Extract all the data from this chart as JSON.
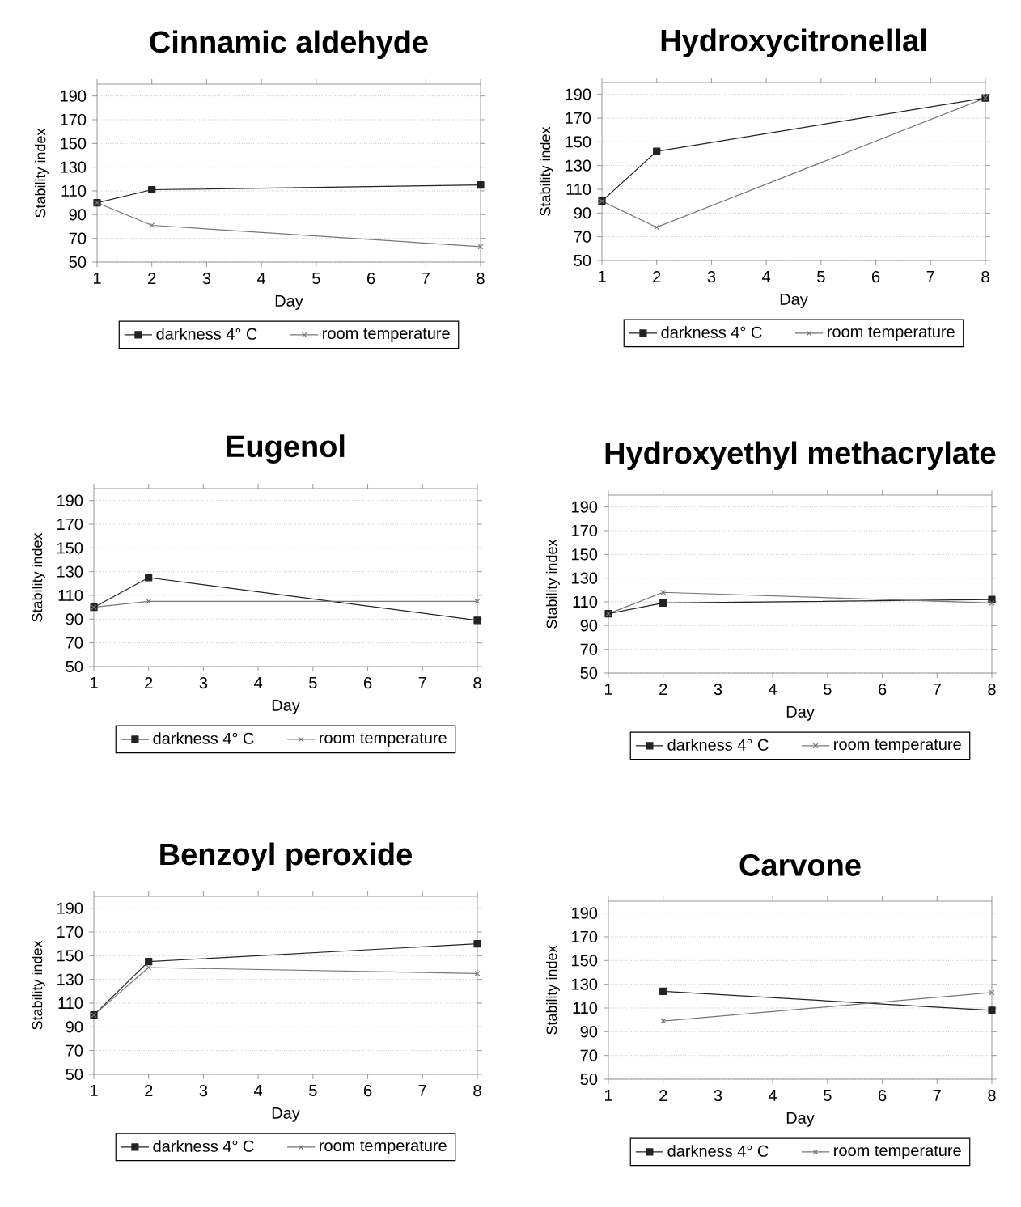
{
  "chart_data": [
    {
      "type": "line",
      "title": "Cinnamic aldehyde",
      "xlabel": "Day",
      "ylabel": "Stability index",
      "x": [
        1,
        2,
        8
      ],
      "xlim": [
        1,
        8
      ],
      "xticks": [
        1,
        2,
        3,
        4,
        5,
        6,
        7,
        8
      ],
      "ylim": [
        50,
        200
      ],
      "yticks": [
        50,
        70,
        90,
        110,
        130,
        150,
        170,
        190
      ],
      "grid": "y",
      "legend": "bottom",
      "series": [
        {
          "name": "darkness 4° C",
          "color": "#222222",
          "marker": "square",
          "values": [
            100,
            111,
            115
          ]
        },
        {
          "name": "room temperature",
          "color": "#777777",
          "marker": "cross",
          "values": [
            100,
            81,
            63
          ]
        }
      ]
    },
    {
      "type": "line",
      "title": "Hydroxycitronellal",
      "xlabel": "Day",
      "ylabel": "Stability index",
      "x": [
        1,
        2,
        8
      ],
      "xlim": [
        1,
        8
      ],
      "xticks": [
        1,
        2,
        3,
        4,
        5,
        6,
        7,
        8
      ],
      "ylim": [
        50,
        200
      ],
      "yticks": [
        50,
        70,
        90,
        110,
        130,
        150,
        170,
        190
      ],
      "grid": "y",
      "legend": "bottom",
      "series": [
        {
          "name": "darkness 4° C",
          "color": "#222222",
          "marker": "square",
          "values": [
            100,
            142,
            187
          ]
        },
        {
          "name": "room temperature",
          "color": "#777777",
          "marker": "cross",
          "values": [
            100,
            78,
            187
          ]
        }
      ]
    },
    {
      "type": "line",
      "title": "Eugenol",
      "xlabel": "Day",
      "ylabel": "Stability index",
      "x": [
        1,
        2,
        8
      ],
      "xlim": [
        1,
        8
      ],
      "xticks": [
        1,
        2,
        3,
        4,
        5,
        6,
        7,
        8
      ],
      "ylim": [
        50,
        200
      ],
      "yticks": [
        50,
        70,
        90,
        110,
        130,
        150,
        170,
        190
      ],
      "grid": "y",
      "legend": "bottom",
      "series": [
        {
          "name": "darkness 4° C",
          "color": "#222222",
          "marker": "square",
          "values": [
            100,
            125,
            89
          ]
        },
        {
          "name": "room temperature",
          "color": "#777777",
          "marker": "cross",
          "values": [
            100,
            105,
            105
          ]
        }
      ]
    },
    {
      "type": "line",
      "title": "Hydroxyethyl methacrylate",
      "xlabel": "Day",
      "ylabel": "Stability index",
      "x": [
        1,
        2,
        8
      ],
      "xlim": [
        1,
        8
      ],
      "xticks": [
        1,
        2,
        3,
        4,
        5,
        6,
        7,
        8
      ],
      "ylim": [
        50,
        200
      ],
      "yticks": [
        50,
        70,
        90,
        110,
        130,
        150,
        170,
        190
      ],
      "grid": "y",
      "legend": "bottom",
      "series": [
        {
          "name": "darkness 4° C",
          "color": "#222222",
          "marker": "square",
          "values": [
            100,
            109,
            112
          ]
        },
        {
          "name": "room temperature",
          "color": "#777777",
          "marker": "cross",
          "values": [
            100,
            118,
            109
          ]
        }
      ]
    },
    {
      "type": "line",
      "title": "Benzoyl peroxide",
      "xlabel": "Day",
      "ylabel": "Stability index",
      "x": [
        1,
        2,
        8
      ],
      "xlim": [
        1,
        8
      ],
      "xticks": [
        1,
        2,
        3,
        4,
        5,
        6,
        7,
        8
      ],
      "ylim": [
        50,
        200
      ],
      "yticks": [
        50,
        70,
        90,
        110,
        130,
        150,
        170,
        190
      ],
      "grid": "y",
      "legend": "bottom",
      "series": [
        {
          "name": "darkness 4° C",
          "color": "#222222",
          "marker": "square",
          "values": [
            100,
            145,
            160
          ]
        },
        {
          "name": "room temperature",
          "color": "#777777",
          "marker": "cross",
          "values": [
            100,
            140,
            135
          ]
        }
      ]
    },
    {
      "type": "line",
      "title": "Carvone",
      "xlabel": "Day",
      "ylabel": "Stability index",
      "x": [
        2,
        8
      ],
      "xlim": [
        1,
        8
      ],
      "xticks": [
        1,
        2,
        3,
        4,
        5,
        6,
        7,
        8
      ],
      "ylim": [
        50,
        200
      ],
      "yticks": [
        50,
        70,
        90,
        110,
        130,
        150,
        170,
        190
      ],
      "grid": "y",
      "legend": "bottom",
      "series": [
        {
          "name": "darkness 4° C",
          "color": "#222222",
          "marker": "square",
          "values": [
            124,
            108
          ]
        },
        {
          "name": "room temperature",
          "color": "#777777",
          "marker": "cross",
          "values": [
            99,
            123
          ]
        }
      ]
    }
  ]
}
